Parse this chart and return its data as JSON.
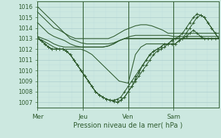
{
  "xlabel": "Pression niveau de la mer( hPa )",
  "bg_color": "#cce8e0",
  "grid_color_major": "#aacccc",
  "grid_color_minor": "#bbdddd",
  "line_color": "#2d5a2d",
  "ylim": [
    1006.5,
    1016.5
  ],
  "yticks": [
    1007,
    1008,
    1009,
    1010,
    1011,
    1012,
    1013,
    1014,
    1015,
    1016
  ],
  "day_labels": [
    "Mer",
    "Jeu",
    "Ven",
    "Sam"
  ],
  "day_positions": [
    0.0,
    0.25,
    0.5,
    0.75
  ],
  "xlim": [
    0.0,
    1.0
  ],
  "series": [
    {
      "x": [
        0.0,
        0.03,
        0.06,
        0.09,
        0.12,
        0.15,
        0.18,
        0.21,
        0.24,
        0.27,
        0.3,
        0.33,
        0.36,
        0.39,
        0.42,
        0.45,
        0.48,
        0.51,
        0.54,
        0.57,
        0.6,
        0.63,
        0.66,
        0.69,
        0.72,
        0.75,
        0.78,
        0.81,
        0.84,
        0.87,
        0.9,
        0.93,
        0.96,
        1.0
      ],
      "y": [
        1016.0,
        1015.5,
        1015.0,
        1014.5,
        1014.0,
        1013.5,
        1013.0,
        1012.8,
        1012.6,
        1012.5,
        1012.5,
        1012.5,
        1012.5,
        1012.5,
        1012.6,
        1012.8,
        1013.0,
        1013.0,
        1013.0,
        1013.0,
        1013.0,
        1013.0,
        1013.0,
        1013.0,
        1013.0,
        1013.0,
        1013.0,
        1013.0,
        1013.0,
        1013.0,
        1013.0,
        1013.0,
        1013.0,
        1013.0
      ],
      "marker": false
    },
    {
      "x": [
        0.0,
        0.03,
        0.06,
        0.09,
        0.12,
        0.15,
        0.18,
        0.21,
        0.24,
        0.27,
        0.3,
        0.33,
        0.36,
        0.39,
        0.42,
        0.45,
        0.48,
        0.51,
        0.54,
        0.57,
        0.6,
        0.63,
        0.66,
        0.69,
        0.72,
        0.75,
        0.78,
        0.81,
        0.84,
        0.87,
        0.9,
        0.93,
        0.96,
        1.0
      ],
      "y": [
        1015.5,
        1015.0,
        1014.5,
        1014.0,
        1013.8,
        1013.5,
        1013.2,
        1013.0,
        1013.0,
        1013.0,
        1013.0,
        1013.0,
        1013.0,
        1013.0,
        1013.2,
        1013.5,
        1013.8,
        1014.0,
        1014.2,
        1014.3,
        1014.3,
        1014.2,
        1014.0,
        1013.8,
        1013.5,
        1013.5,
        1013.5,
        1013.5,
        1013.5,
        1013.5,
        1013.5,
        1013.5,
        1013.5,
        1013.5
      ],
      "marker": false
    },
    {
      "x": [
        0.0,
        0.03,
        0.06,
        0.09,
        0.12,
        0.15,
        0.18,
        0.21,
        0.24,
        0.27,
        0.3,
        0.33,
        0.36,
        0.39,
        0.42,
        0.45,
        0.48,
        0.51,
        0.54,
        0.57,
        0.6,
        0.63,
        0.66,
        0.69,
        0.72,
        0.75,
        0.78,
        0.81,
        0.84,
        0.87,
        0.9,
        0.93,
        0.96,
        1.0
      ],
      "y": [
        1014.5,
        1014.0,
        1013.5,
        1013.2,
        1013.0,
        1012.8,
        1012.5,
        1012.3,
        1012.2,
        1012.2,
        1012.2,
        1012.2,
        1012.2,
        1012.3,
        1012.5,
        1012.8,
        1013.0,
        1013.2,
        1013.3,
        1013.3,
        1013.3,
        1013.3,
        1013.3,
        1013.3,
        1013.3,
        1013.2,
        1013.2,
        1013.2,
        1013.2,
        1013.2,
        1013.2,
        1013.2,
        1013.2,
        1013.2
      ],
      "marker": false
    },
    {
      "x": [
        0.0,
        0.03,
        0.06,
        0.09,
        0.12,
        0.15,
        0.18,
        0.21,
        0.24,
        0.27,
        0.3,
        0.33,
        0.36,
        0.39,
        0.42,
        0.45,
        0.48,
        0.51,
        0.54,
        0.57,
        0.6,
        0.63,
        0.66,
        0.69,
        0.72,
        0.75,
        0.78,
        0.81,
        0.84,
        0.87,
        0.9,
        0.93,
        0.96,
        1.0
      ],
      "y": [
        1013.2,
        1013.0,
        1012.8,
        1012.5,
        1012.3,
        1012.2,
        1012.2,
        1012.2,
        1012.2,
        1012.2,
        1012.2,
        1012.2,
        1012.2,
        1012.3,
        1012.5,
        1012.8,
        1013.0,
        1013.0,
        1013.0,
        1013.0,
        1013.0,
        1013.0,
        1013.0,
        1013.0,
        1013.0,
        1013.0,
        1013.0,
        1013.0,
        1013.0,
        1013.0,
        1013.0,
        1013.0,
        1013.0,
        1013.0
      ],
      "marker": false
    },
    {
      "x": [
        0.0,
        0.03,
        0.06,
        0.09,
        0.12,
        0.15,
        0.18,
        0.2,
        0.22,
        0.24,
        0.27,
        0.3,
        0.33,
        0.36,
        0.39,
        0.42,
        0.45,
        0.5,
        0.54,
        0.57,
        0.6,
        0.63,
        0.66,
        0.69,
        0.72,
        0.75,
        0.78,
        0.81,
        0.84,
        0.87,
        0.9,
        0.93,
        0.96,
        1.0
      ],
      "y": [
        1013.0,
        1012.8,
        1012.5,
        1012.2,
        1012.0,
        1012.0,
        1012.0,
        1012.0,
        1012.0,
        1012.0,
        1011.8,
        1011.5,
        1011.0,
        1010.5,
        1010.0,
        1009.5,
        1009.0,
        1008.8,
        1011.5,
        1012.2,
        1012.5,
        1012.5,
        1012.5,
        1012.5,
        1012.5,
        1013.0,
        1013.0,
        1013.0,
        1013.0,
        1013.0,
        1013.0,
        1013.0,
        1013.0,
        1013.0
      ],
      "marker": false
    },
    {
      "x": [
        0.0,
        0.02,
        0.04,
        0.06,
        0.08,
        0.1,
        0.12,
        0.14,
        0.16,
        0.18,
        0.2,
        0.22,
        0.24,
        0.26,
        0.28,
        0.3,
        0.32,
        0.34,
        0.36,
        0.38,
        0.4,
        0.42,
        0.44,
        0.46,
        0.48,
        0.5,
        0.52,
        0.54,
        0.56,
        0.58,
        0.6,
        0.62,
        0.64,
        0.66,
        0.68,
        0.7,
        0.72,
        0.74,
        0.76,
        0.78,
        0.8,
        0.82,
        0.84,
        0.86,
        0.88,
        0.9,
        0.92,
        0.94,
        0.96,
        0.98,
        1.0
      ],
      "y": [
        1013.2,
        1012.8,
        1012.5,
        1012.2,
        1012.0,
        1012.0,
        1012.0,
        1012.0,
        1011.8,
        1011.5,
        1011.0,
        1010.5,
        1010.0,
        1009.5,
        1009.0,
        1008.5,
        1008.0,
        1007.7,
        1007.5,
        1007.3,
        1007.2,
        1007.2,
        1007.3,
        1007.5,
        1008.0,
        1008.5,
        1009.0,
        1009.5,
        1010.0,
        1010.5,
        1011.0,
        1011.5,
        1011.8,
        1012.0,
        1012.2,
        1012.5,
        1012.5,
        1012.5,
        1012.5,
        1012.8,
        1013.0,
        1013.2,
        1013.5,
        1013.8,
        1013.5,
        1013.2,
        1013.0,
        1013.0,
        1013.0,
        1013.0,
        1013.0
      ],
      "marker": true
    },
    {
      "x": [
        0.0,
        0.02,
        0.04,
        0.06,
        0.08,
        0.1,
        0.12,
        0.14,
        0.16,
        0.18,
        0.2,
        0.22,
        0.24,
        0.26,
        0.28,
        0.3,
        0.32,
        0.34,
        0.36,
        0.38,
        0.4,
        0.42,
        0.44,
        0.46,
        0.48,
        0.5,
        0.52,
        0.54,
        0.56,
        0.58,
        0.6,
        0.62,
        0.64,
        0.66,
        0.68,
        0.7,
        0.72,
        0.74,
        0.76,
        0.78,
        0.8,
        0.82,
        0.84,
        0.86,
        0.88,
        0.9,
        0.92,
        0.94,
        0.96,
        0.98,
        1.0
      ],
      "y": [
        1013.0,
        1012.8,
        1012.5,
        1012.2,
        1012.0,
        1012.0,
        1012.0,
        1012.0,
        1011.8,
        1011.5,
        1011.0,
        1010.5,
        1010.0,
        1009.5,
        1009.0,
        1008.5,
        1008.0,
        1007.7,
        1007.5,
        1007.3,
        1007.2,
        1007.1,
        1007.0,
        1007.2,
        1007.5,
        1008.0,
        1008.5,
        1009.0,
        1009.5,
        1010.0,
        1010.5,
        1011.0,
        1011.5,
        1011.8,
        1012.0,
        1012.2,
        1012.5,
        1012.5,
        1012.5,
        1012.8,
        1013.0,
        1013.5,
        1014.0,
        1014.5,
        1015.0,
        1015.2,
        1015.0,
        1014.5,
        1014.0,
        1013.5,
        1013.0
      ],
      "marker": true
    },
    {
      "x": [
        0.0,
        0.02,
        0.04,
        0.06,
        0.08,
        0.1,
        0.12,
        0.14,
        0.16,
        0.18,
        0.2,
        0.22,
        0.24,
        0.26,
        0.28,
        0.3,
        0.32,
        0.34,
        0.36,
        0.38,
        0.4,
        0.42,
        0.44,
        0.46,
        0.48,
        0.5,
        0.52,
        0.54,
        0.56,
        0.58,
        0.6,
        0.62,
        0.64,
        0.66,
        0.68,
        0.7,
        0.72,
        0.74,
        0.76,
        0.78,
        0.8,
        0.82,
        0.84,
        0.86,
        0.88,
        0.9,
        0.92,
        0.94,
        0.96,
        0.98,
        1.0
      ],
      "y": [
        1013.0,
        1012.8,
        1012.5,
        1012.2,
        1012.0,
        1012.0,
        1012.0,
        1012.0,
        1011.8,
        1011.5,
        1011.0,
        1010.5,
        1010.0,
        1009.5,
        1009.0,
        1008.5,
        1008.0,
        1007.7,
        1007.5,
        1007.3,
        1007.2,
        1007.1,
        1007.0,
        1007.2,
        1007.5,
        1008.0,
        1008.5,
        1009.2,
        1009.8,
        1010.5,
        1011.0,
        1011.5,
        1011.8,
        1012.0,
        1012.2,
        1012.5,
        1012.5,
        1012.8,
        1013.0,
        1013.2,
        1013.5,
        1014.0,
        1014.5,
        1015.0,
        1015.3,
        1015.2,
        1015.0,
        1014.5,
        1014.0,
        1013.5,
        1013.0
      ],
      "marker": true
    }
  ]
}
